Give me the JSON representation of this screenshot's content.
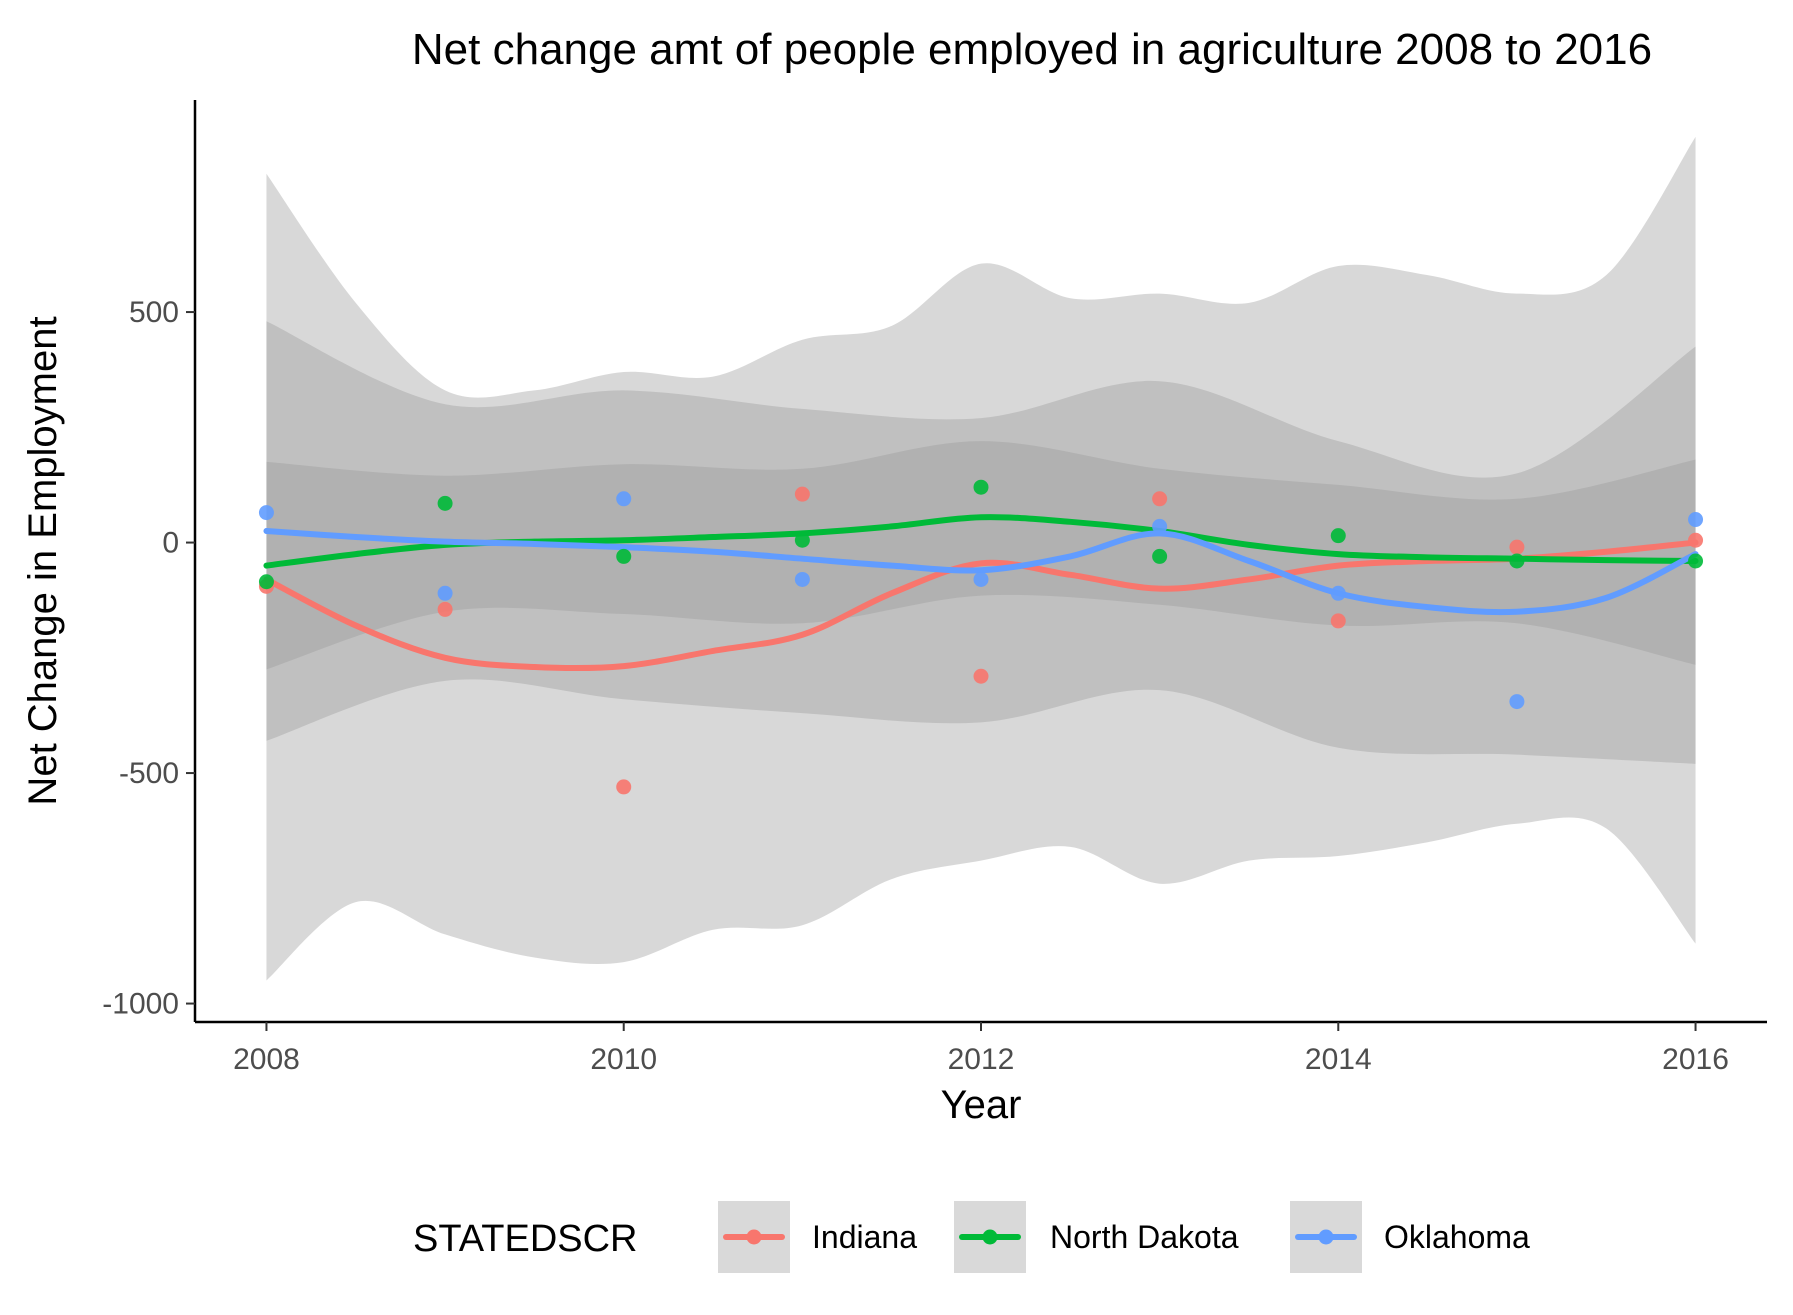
{
  "chart_data": {
    "type": "line",
    "title": "Net change amt of people employed in agriculture 2008 to 2016",
    "xlabel": "Year",
    "ylabel": "Net Change in Employment",
    "xlim": [
      2007.6,
      2016.4
    ],
    "ylim": [
      -1040,
      960
    ],
    "x_ticks": [
      2008,
      2010,
      2012,
      2014,
      2016
    ],
    "y_ticks": [
      -1000,
      -500,
      0,
      500
    ],
    "y_tick_labels": [
      "-1000",
      "-500",
      "0",
      "500"
    ],
    "grid": false,
    "legend": {
      "title": "STATEDSCR",
      "position": "bottom",
      "entries": [
        "Indiana",
        "North Dakota",
        "Oklahoma"
      ]
    },
    "series": [
      {
        "name": "Indiana",
        "color": "#F8766D",
        "points": {
          "x": [
            2008,
            2009,
            2010,
            2011,
            2012,
            2013,
            2014,
            2015,
            2016
          ],
          "y": [
            -95,
            -145,
            -530,
            105,
            -290,
            95,
            -170,
            -10,
            5
          ]
        },
        "smooth": {
          "x": [
            2008,
            2008.5,
            2009,
            2009.5,
            2010,
            2010.5,
            2011,
            2011.5,
            2012,
            2012.5,
            2013,
            2013.5,
            2014,
            2014.5,
            2015,
            2015.5,
            2016
          ],
          "y": [
            -80,
            -180,
            -250,
            -270,
            -268,
            -235,
            -200,
            -110,
            -45,
            -70,
            -100,
            -80,
            -50,
            -40,
            -35,
            -20,
            0
          ]
        },
        "ci_upper": {
          "x": [
            2008,
            2008.5,
            2009,
            2009.5,
            2010,
            2010.5,
            2011,
            2011.5,
            2012,
            2012.5,
            2013,
            2013.5,
            2014,
            2014.5,
            2015,
            2015.5,
            2016
          ],
          "y": [
            800,
            520,
            330,
            330,
            370,
            360,
            440,
            470,
            605,
            530,
            540,
            520,
            600,
            580,
            540,
            580,
            880
          ]
        },
        "ci_lower": {
          "x": [
            2008,
            2008.5,
            2009,
            2009.5,
            2010,
            2010.5,
            2011,
            2011.5,
            2012,
            2012.5,
            2013,
            2013.5,
            2014,
            2014.5,
            2015,
            2015.5,
            2016
          ],
          "y": [
            -950,
            -780,
            -850,
            -900,
            -910,
            -840,
            -830,
            -730,
            -690,
            -660,
            -740,
            -690,
            -680,
            -650,
            -610,
            -620,
            -870
          ]
        }
      },
      {
        "name": "North Dakota",
        "color": "#00BA38",
        "points": {
          "x": [
            2008,
            2009,
            2010,
            2011,
            2012,
            2013,
            2014,
            2015,
            2016
          ],
          "y": [
            -85,
            85,
            -30,
            5,
            120,
            -30,
            15,
            -40,
            -40
          ]
        },
        "smooth": {
          "x": [
            2008,
            2008.5,
            2009,
            2009.5,
            2010,
            2010.5,
            2011,
            2011.5,
            2012,
            2012.5,
            2013,
            2013.5,
            2014,
            2014.5,
            2015,
            2015.5,
            2016
          ],
          "y": [
            -50,
            -25,
            -5,
            2,
            5,
            12,
            20,
            35,
            55,
            45,
            25,
            -5,
            -25,
            -32,
            -35,
            -38,
            -40
          ]
        },
        "ci_upper": {
          "x": [
            2008,
            2009,
            2010,
            2011,
            2012,
            2013,
            2014,
            2015,
            2016
          ],
          "y": [
            480,
            300,
            330,
            290,
            270,
            350,
            220,
            150,
            425
          ]
        },
        "ci_lower": {
          "x": [
            2008,
            2009,
            2010,
            2011,
            2012,
            2013,
            2014,
            2015,
            2016
          ],
          "y": [
            -430,
            -300,
            -340,
            -370,
            -390,
            -320,
            -445,
            -460,
            -480
          ]
        }
      },
      {
        "name": "Oklahoma",
        "color": "#619CFF",
        "points": {
          "x": [
            2008,
            2009,
            2010,
            2011,
            2012,
            2013,
            2014,
            2015,
            2016
          ],
          "y": [
            65,
            -110,
            95,
            -80,
            -80,
            35,
            -110,
            -345,
            50
          ]
        },
        "smooth": {
          "x": [
            2008,
            2008.5,
            2009,
            2009.5,
            2010,
            2010.5,
            2011,
            2011.5,
            2012,
            2012.5,
            2013,
            2013.5,
            2014,
            2014.5,
            2015,
            2015.5,
            2016
          ],
          "y": [
            25,
            12,
            2,
            -3,
            -10,
            -20,
            -35,
            -50,
            -60,
            -30,
            20,
            -40,
            -110,
            -140,
            -150,
            -120,
            -25
          ]
        },
        "ci_upper": {
          "x": [
            2008,
            2009,
            2010,
            2011,
            2012,
            2013,
            2014,
            2015,
            2016
          ],
          "y": [
            175,
            145,
            170,
            160,
            220,
            160,
            125,
            95,
            180
          ]
        },
        "ci_lower": {
          "x": [
            2008,
            2009,
            2010,
            2011,
            2012,
            2013,
            2014,
            2015,
            2016
          ],
          "y": [
            -275,
            -150,
            -155,
            -175,
            -115,
            -135,
            -180,
            -175,
            -265
          ]
        }
      }
    ]
  }
}
